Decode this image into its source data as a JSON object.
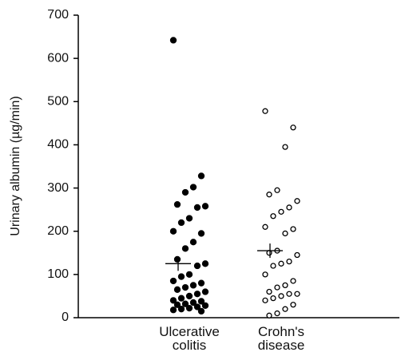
{
  "chart_data": {
    "type": "strip",
    "y_label": "Urinary albumin (µg/min)",
    "categories": [
      "Ulcerative colitis",
      "Crohn's disease"
    ],
    "values": [
      [
        642,
        328,
        302,
        290,
        262,
        258,
        255,
        230,
        220,
        200,
        195,
        175,
        160,
        135,
        125,
        120,
        100,
        95,
        85,
        80,
        75,
        70,
        65,
        60,
        55,
        50,
        45,
        40,
        38,
        35,
        32,
        30,
        28,
        25,
        22,
        20,
        18,
        15
      ],
      [
        478,
        440,
        395,
        295,
        285,
        270,
        255,
        245,
        235,
        210,
        205,
        195,
        155,
        150,
        145,
        130,
        125,
        120,
        100,
        85,
        75,
        70,
        60,
        55,
        55,
        50,
        45,
        40,
        30,
        20,
        10,
        5
      ]
    ],
    "means": [
      125,
      155
    ],
    "marker_styles": [
      "filled",
      "open"
    ],
    "color": "#000000",
    "ylim": [
      0,
      700
    ],
    "yticks": [
      0,
      100,
      200,
      300,
      400,
      500,
      600,
      700
    ]
  }
}
